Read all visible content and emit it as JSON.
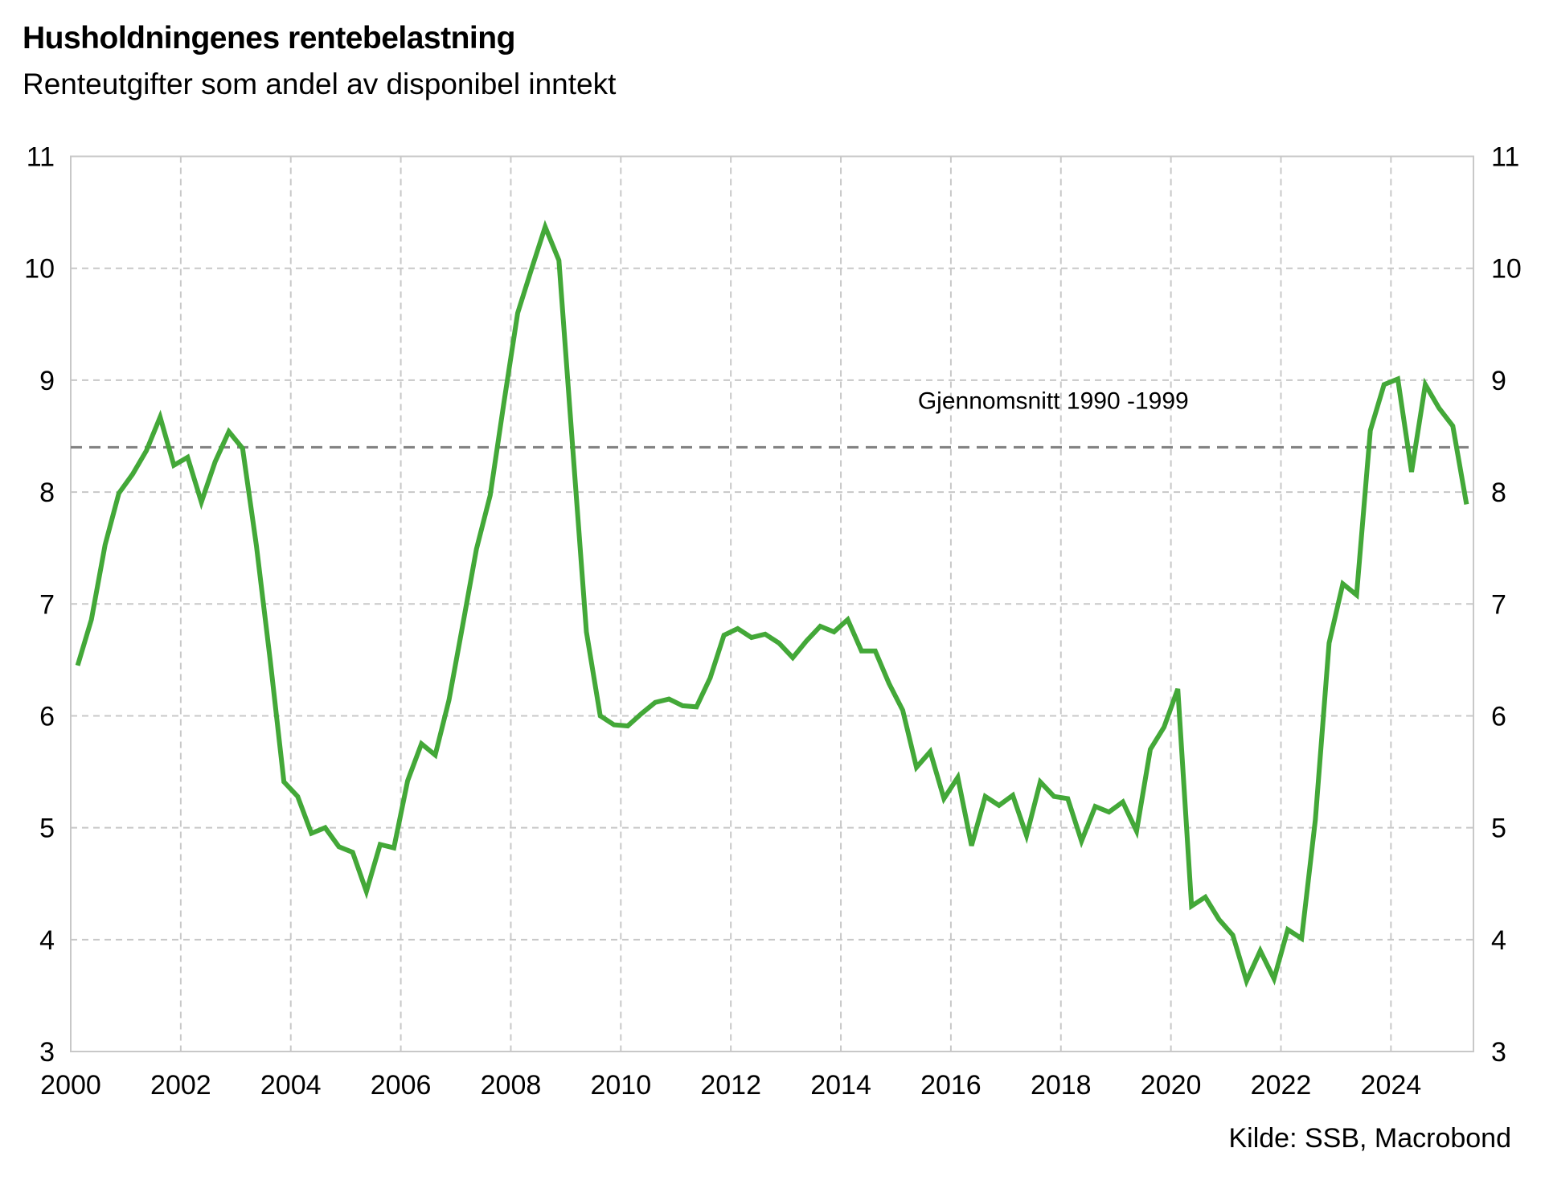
{
  "chart_data": {
    "type": "line",
    "title": "Husholdningenes rentebelastning",
    "subtitle": "Renteutgifter som andel av disponibel inntekt",
    "source": "Kilde: SSB, Macrobond",
    "xlabel": "",
    "ylabel": "",
    "xlim": [
      2000,
      2025.5
    ],
    "ylim": [
      3,
      11
    ],
    "grid": true,
    "x_ticks": [
      "2000",
      "2002",
      "2004",
      "2006",
      "2008",
      "2010",
      "2012",
      "2014",
      "2016",
      "2018",
      "2020",
      "2022",
      "2024"
    ],
    "y_ticks": [
      "3",
      "4",
      "5",
      "6",
      "7",
      "8",
      "9",
      "10",
      "11"
    ],
    "y_ticks_right": [
      "3",
      "4",
      "5",
      "6",
      "7",
      "8",
      "9",
      "10",
      "11"
    ],
    "frequency": "quarterly",
    "start": "2000Q1",
    "series": [
      {
        "name": "Rentebelastning",
        "color": "#43a838",
        "values": [
          6.45,
          6.86,
          7.53,
          7.99,
          8.16,
          8.37,
          8.67,
          8.24,
          8.31,
          7.91,
          8.27,
          8.54,
          8.39,
          7.52,
          6.5,
          5.41,
          5.28,
          4.95,
          5.0,
          4.83,
          4.78,
          4.43,
          4.85,
          4.82,
          5.42,
          5.75,
          5.65,
          6.14,
          6.81,
          7.49,
          7.97,
          8.8,
          9.6,
          9.99,
          10.37,
          10.07,
          8.4,
          6.75,
          6.0,
          5.92,
          5.91,
          6.02,
          6.12,
          6.15,
          6.09,
          6.08,
          6.34,
          6.72,
          6.78,
          6.7,
          6.73,
          6.65,
          6.52,
          6.67,
          6.8,
          6.75,
          6.86,
          6.58,
          6.58,
          6.29,
          6.05,
          5.54,
          5.68,
          5.26,
          5.45,
          4.84,
          5.28,
          5.2,
          5.29,
          4.93,
          5.41,
          5.28,
          5.26,
          4.88,
          5.19,
          5.14,
          5.23,
          4.97,
          5.7,
          5.9,
          6.24,
          4.3,
          4.38,
          4.18,
          4.04,
          3.63,
          3.9,
          3.65,
          4.09,
          4.01,
          5.07,
          6.65,
          7.18,
          7.08,
          8.55,
          8.96,
          9.01,
          8.18,
          8.96,
          8.75,
          8.59,
          7.89
        ]
      }
    ],
    "reference_line": {
      "label": "Gjennomsnitt 1990 -1999",
      "value": 8.4,
      "color": "#808080",
      "style": "dashed"
    }
  }
}
